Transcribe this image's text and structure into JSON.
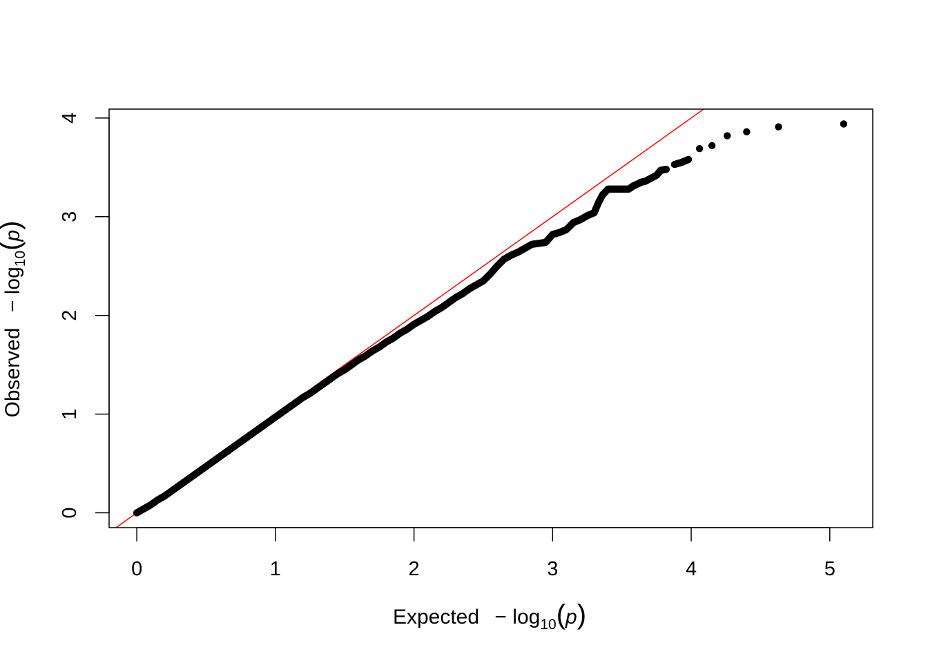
{
  "chart_data": {
    "type": "scatter",
    "xlabel": {
      "prefix": "Expected",
      "minus": "−",
      "log": "log",
      "sub": "10",
      "open": "(",
      "var": "p",
      "close": ")"
    },
    "ylabel": {
      "prefix": "Observed",
      "minus": "−",
      "log": "log",
      "sub": "10",
      "open": "(",
      "var": "p",
      "close": ")"
    },
    "xlim": [
      -0.2,
      5.31
    ],
    "ylim": [
      -0.15,
      4.09
    ],
    "x_ticks": [
      0,
      1,
      2,
      3,
      4,
      5
    ],
    "x_tick_labels": [
      "0",
      "1",
      "2",
      "3",
      "4",
      "5"
    ],
    "y_ticks": [
      0,
      1,
      2,
      3,
      4
    ],
    "y_tick_labels": [
      "0",
      "1",
      "2",
      "3",
      "4"
    ],
    "reference_line": {
      "slope": 1,
      "intercept": 0,
      "color": "#ff0000"
    },
    "point_color": "#000000",
    "points": [
      [
        0.0,
        0.0
      ],
      [
        0.05,
        0.04
      ],
      [
        0.1,
        0.08
      ],
      [
        0.15,
        0.13
      ],
      [
        0.2,
        0.17
      ],
      [
        0.25,
        0.22
      ],
      [
        0.3,
        0.27
      ],
      [
        0.35,
        0.32
      ],
      [
        0.4,
        0.37
      ],
      [
        0.45,
        0.42
      ],
      [
        0.5,
        0.47
      ],
      [
        0.55,
        0.52
      ],
      [
        0.6,
        0.57
      ],
      [
        0.65,
        0.62
      ],
      [
        0.7,
        0.67
      ],
      [
        0.75,
        0.72
      ],
      [
        0.8,
        0.77
      ],
      [
        0.85,
        0.82
      ],
      [
        0.9,
        0.87
      ],
      [
        0.95,
        0.92
      ],
      [
        1.0,
        0.97
      ],
      [
        1.05,
        1.02
      ],
      [
        1.1,
        1.07
      ],
      [
        1.15,
        1.12
      ],
      [
        1.2,
        1.17
      ],
      [
        1.25,
        1.21
      ],
      [
        1.3,
        1.26
      ],
      [
        1.35,
        1.31
      ],
      [
        1.4,
        1.36
      ],
      [
        1.45,
        1.41
      ],
      [
        1.5,
        1.45
      ],
      [
        1.55,
        1.5
      ],
      [
        1.6,
        1.55
      ],
      [
        1.65,
        1.59
      ],
      [
        1.7,
        1.64
      ],
      [
        1.75,
        1.68
      ],
      [
        1.8,
        1.73
      ],
      [
        1.85,
        1.77
      ],
      [
        1.9,
        1.82
      ],
      [
        1.95,
        1.86
      ],
      [
        2.0,
        1.91
      ],
      [
        2.05,
        1.95
      ],
      [
        2.1,
        1.99
      ],
      [
        2.15,
        2.04
      ],
      [
        2.2,
        2.08
      ],
      [
        2.25,
        2.13
      ],
      [
        2.3,
        2.18
      ],
      [
        2.35,
        2.22
      ],
      [
        2.4,
        2.27
      ],
      [
        2.45,
        2.31
      ],
      [
        2.5,
        2.35
      ],
      [
        2.55,
        2.42
      ],
      [
        2.6,
        2.5
      ],
      [
        2.65,
        2.57
      ],
      [
        2.7,
        2.61
      ],
      [
        2.75,
        2.64
      ],
      [
        2.8,
        2.68
      ],
      [
        2.85,
        2.72
      ],
      [
        2.9,
        2.73
      ],
      [
        2.95,
        2.74
      ],
      [
        3.0,
        2.82
      ],
      [
        3.05,
        2.84
      ],
      [
        3.1,
        2.87
      ],
      [
        3.15,
        2.94
      ],
      [
        3.2,
        2.97
      ],
      [
        3.25,
        3.01
      ],
      [
        3.3,
        3.04
      ],
      [
        3.33,
        3.14
      ],
      [
        3.36,
        3.22
      ],
      [
        3.4,
        3.28
      ],
      [
        3.45,
        3.28
      ],
      [
        3.5,
        3.28
      ],
      [
        3.55,
        3.28
      ],
      [
        3.58,
        3.31
      ],
      [
        3.61,
        3.33
      ],
      [
        3.64,
        3.35
      ],
      [
        3.67,
        3.36
      ],
      [
        3.71,
        3.39
      ],
      [
        3.75,
        3.42
      ],
      [
        3.78,
        3.47
      ],
      [
        3.82,
        3.48
      ],
      [
        3.88,
        3.53
      ],
      [
        3.93,
        3.55
      ],
      [
        3.98,
        3.58
      ],
      [
        4.06,
        3.69
      ],
      [
        4.15,
        3.72
      ],
      [
        4.26,
        3.82
      ],
      [
        4.4,
        3.86
      ],
      [
        4.63,
        3.91
      ],
      [
        5.1,
        3.94
      ]
    ]
  }
}
